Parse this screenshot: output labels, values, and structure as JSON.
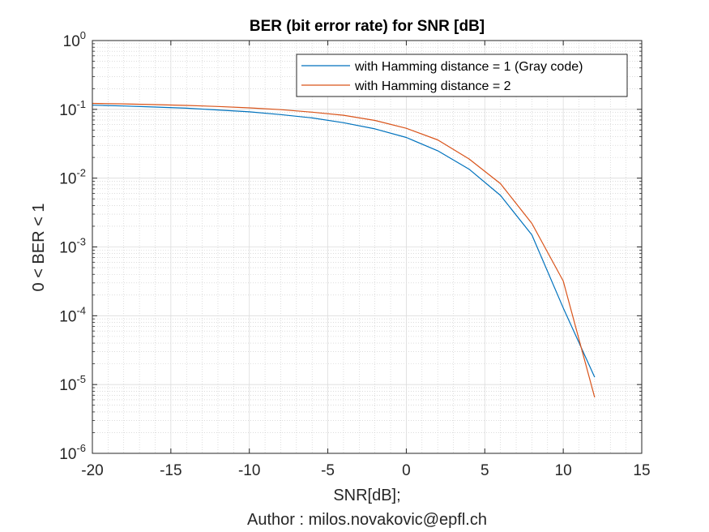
{
  "chart_data": {
    "type": "line",
    "title": "BER (bit error rate) for SNR [dB]",
    "xlabel": "SNR[dB];",
    "xlabel2": "Author : milos.novakovic@epfl.ch",
    "ylabel": "0 < BER < 1",
    "xlim": [
      -20,
      15
    ],
    "ylim": [
      1e-06,
      1
    ],
    "yscale": "log",
    "grid": true,
    "minor_grid": true,
    "legend_position": "top-right",
    "x_ticks": [
      -20,
      -15,
      -10,
      -5,
      0,
      5,
      10,
      15
    ],
    "x_tick_labels": [
      "-20",
      "-15",
      "-10",
      "-5",
      "0",
      "5",
      "10",
      "15"
    ],
    "y_ticks": [
      {
        "value": 1,
        "base": "10",
        "exp": "0"
      },
      {
        "value": 0.1,
        "base": "10",
        "exp": "-1"
      },
      {
        "value": 0.01,
        "base": "10",
        "exp": "-2"
      },
      {
        "value": 0.001,
        "base": "10",
        "exp": "-3"
      },
      {
        "value": 0.0001,
        "base": "10",
        "exp": "-4"
      },
      {
        "value": 1e-05,
        "base": "10",
        "exp": "-5"
      },
      {
        "value": 1e-06,
        "base": "10",
        "exp": "-6"
      }
    ],
    "x": [
      -20,
      -18,
      -16,
      -14,
      -12,
      -10,
      -8,
      -6,
      -4,
      -2,
      0,
      2,
      4,
      6,
      8,
      10,
      12
    ],
    "series": [
      {
        "name": "with Hamming distance = 1 (Gray code)",
        "color": "#0072BD",
        "values": [
          0.115,
          0.112,
          0.108,
          0.104,
          0.098,
          0.092,
          0.084,
          0.075,
          0.064,
          0.052,
          0.039,
          0.025,
          0.0135,
          0.0056,
          0.0015,
          0.00013,
          1.28e-05
        ]
      },
      {
        "name": "with Hamming distance = 2",
        "color": "#D95319",
        "values": [
          0.122,
          0.12,
          0.117,
          0.114,
          0.11,
          0.105,
          0.099,
          0.091,
          0.082,
          0.069,
          0.053,
          0.036,
          0.019,
          0.0083,
          0.0022,
          0.00032,
          6.5e-06
        ]
      }
    ]
  }
}
